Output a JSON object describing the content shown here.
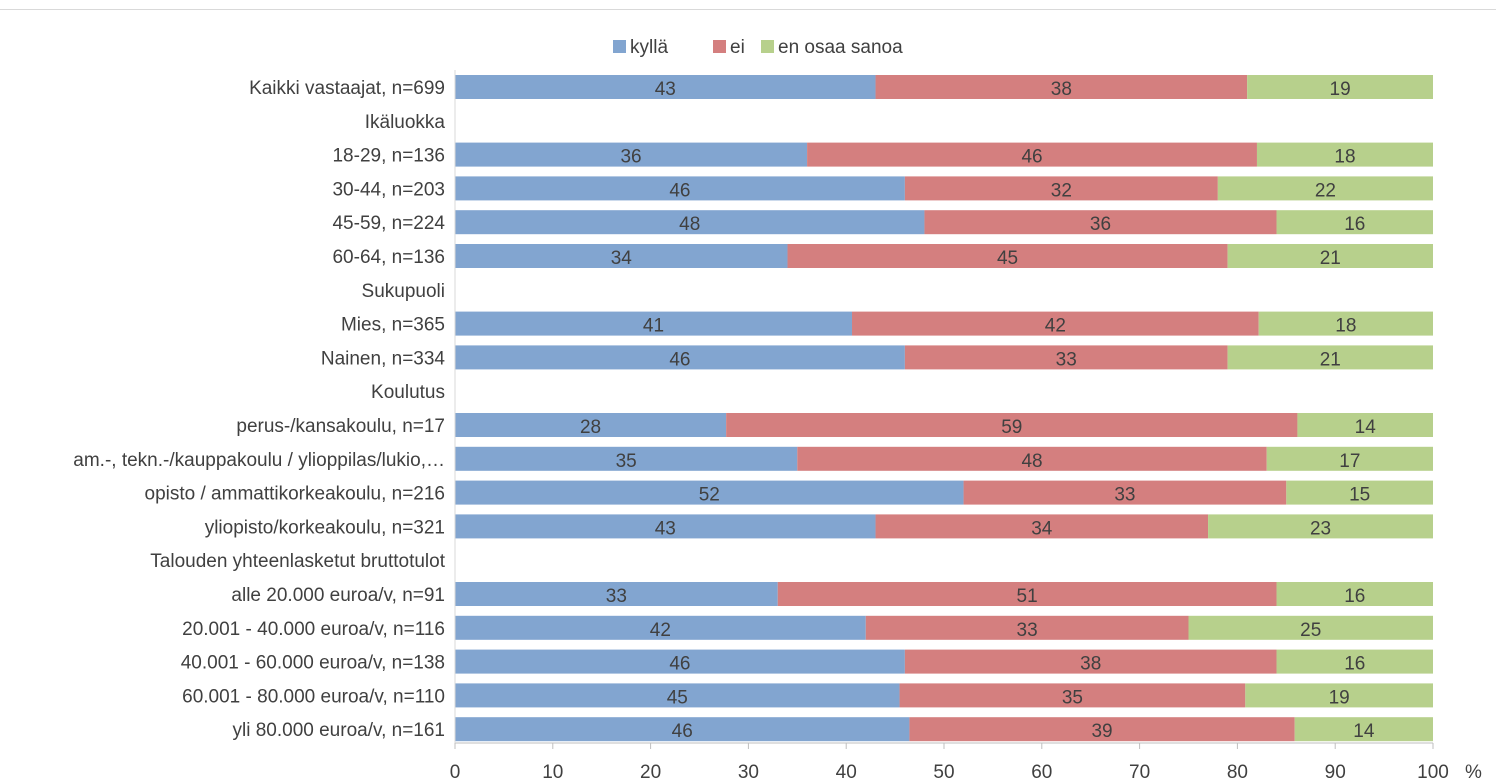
{
  "chart_data": {
    "type": "bar",
    "orientation": "horizontal",
    "stacked": true,
    "legend_position": "top",
    "grid": false,
    "xlim": [
      0,
      100
    ],
    "x_ticks": [
      0,
      10,
      20,
      30,
      40,
      50,
      60,
      70,
      80,
      90,
      100
    ],
    "x_unit": "%",
    "colors": {
      "kyllä": "#82a5d0",
      "ei": "#d47f7f",
      "en osaa sanoa": "#b7d08c"
    },
    "legend": [
      "kyllä",
      "ei",
      "en osaa sanoa"
    ],
    "rows": [
      {
        "label": "Kaikki vastaajat, n=699",
        "values": [
          43,
          38,
          19
        ]
      },
      {
        "label": "Ikäluokka",
        "group_header": true
      },
      {
        "label": "18-29, n=136",
        "values": [
          36,
          46,
          18
        ]
      },
      {
        "label": "30-44, n=203",
        "values": [
          46,
          32,
          22
        ]
      },
      {
        "label": "45-59, n=224",
        "values": [
          48,
          36,
          16
        ]
      },
      {
        "label": "60-64, n=136",
        "values": [
          34,
          45,
          21
        ]
      },
      {
        "label": "Sukupuoli",
        "group_header": true
      },
      {
        "label": "Mies, n=365",
        "values": [
          41,
          42,
          18
        ]
      },
      {
        "label": "Nainen, n=334",
        "values": [
          46,
          33,
          21
        ]
      },
      {
        "label": "Koulutus",
        "group_header": true
      },
      {
        "label": "perus-/kansakoulu, n=17",
        "values": [
          28,
          59,
          14
        ]
      },
      {
        "label": "am.-, tekn.-/kauppakoulu / ylioppilas/lukio,…",
        "values": [
          35,
          48,
          17
        ]
      },
      {
        "label": "opisto / ammattikorkeakoulu, n=216",
        "values": [
          52,
          33,
          15
        ]
      },
      {
        "label": "yliopisto/korkeakoulu, n=321",
        "values": [
          43,
          34,
          23
        ]
      },
      {
        "label": "Talouden yhteenlasketut bruttotulot",
        "group_header": true
      },
      {
        "label": "alle 20.000 euroa/v, n=91",
        "values": [
          33,
          51,
          16
        ]
      },
      {
        "label": "20.001 - 40.000 euroa/v, n=116",
        "values": [
          42,
          33,
          25
        ]
      },
      {
        "label": "40.001 - 60.000 euroa/v, n=138",
        "values": [
          46,
          38,
          16
        ]
      },
      {
        "label": "60.001 - 80.000 euroa/v, n=110",
        "values": [
          45,
          35,
          19
        ]
      },
      {
        "label": "yli 80.000 euroa/v, n=161",
        "values": [
          46,
          39,
          14
        ]
      }
    ]
  }
}
